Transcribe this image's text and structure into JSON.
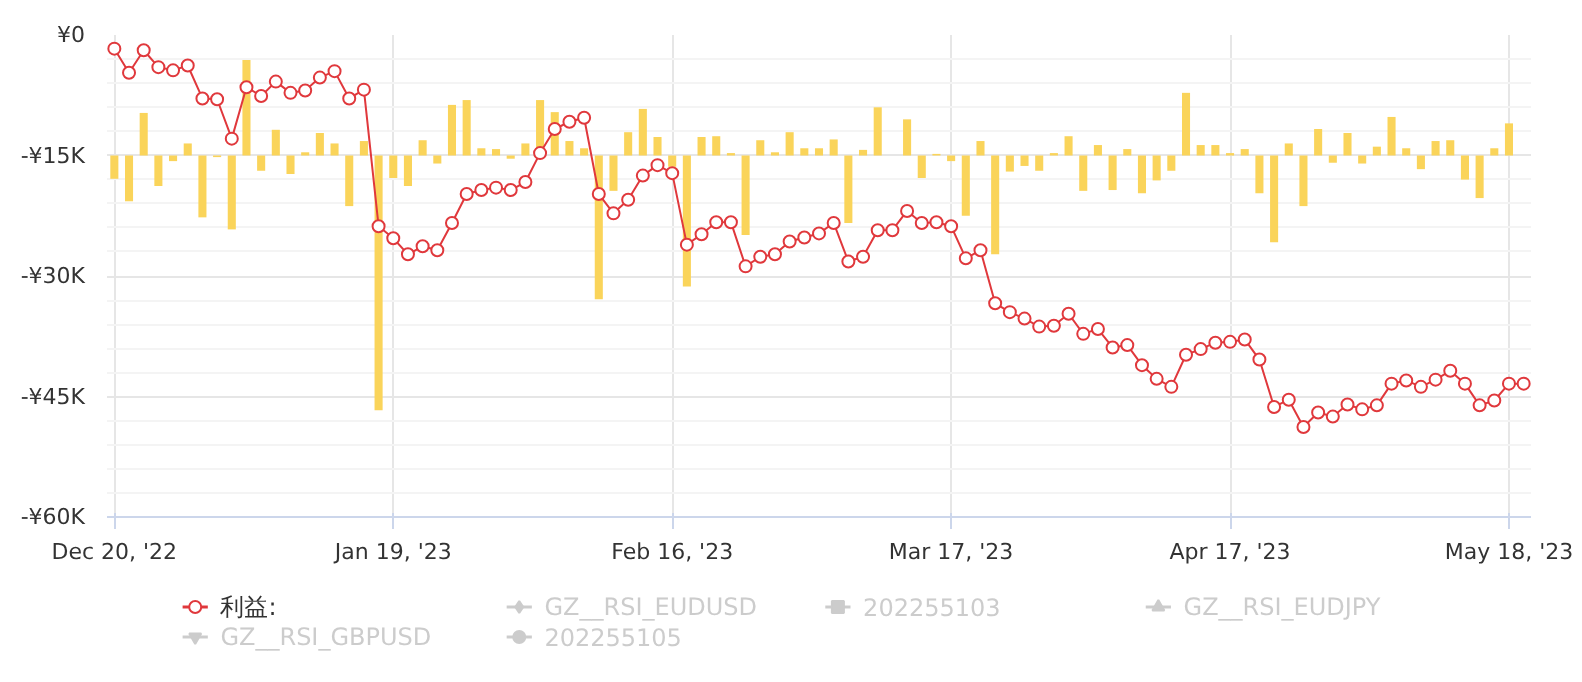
{
  "chart_data": {
    "type": "bar",
    "categories": [
      "Dec 20, '22",
      null,
      null,
      null,
      null,
      null,
      null,
      null,
      null,
      null,
      null,
      null,
      null,
      null,
      null,
      null,
      null,
      null,
      null,
      "Jan 19, '23",
      null,
      null,
      null,
      null,
      null,
      null,
      null,
      null,
      null,
      null,
      null,
      null,
      null,
      null,
      null,
      null,
      null,
      null,
      "Feb 16, '23",
      null,
      null,
      null,
      null,
      null,
      null,
      null,
      null,
      null,
      null,
      null,
      null,
      null,
      null,
      null,
      null,
      null,
      null,
      "Mar 17, '23",
      null,
      null,
      null,
      null,
      null,
      null,
      null,
      null,
      null,
      null,
      null,
      null,
      null,
      null,
      null,
      null,
      null,
      null,
      "Apr 17, '23",
      null,
      null,
      null,
      null,
      null,
      null,
      null,
      null,
      null,
      null,
      null,
      null,
      null,
      null,
      null,
      null,
      null,
      null,
      "May 18, '23",
      null
    ],
    "ylim": [
      -60000,
      0
    ],
    "yticks": [
      {
        "value": 0,
        "label": "¥0"
      },
      {
        "value": -15000,
        "label": "-¥15K"
      },
      {
        "value": -30000,
        "label": "-¥30K"
      },
      {
        "value": -45000,
        "label": "-¥45K"
      },
      {
        "value": -60000,
        "label": "-¥60K"
      }
    ],
    "grid": true,
    "legend": "bottom",
    "series": [
      {
        "color": "#fad45a",
        "base": [
          -15000,
          -15000,
          -15000,
          -15000,
          -15000,
          -15000,
          -15000,
          -15000,
          -15000,
          -15000,
          -15000,
          -15000,
          -15000,
          -15000,
          -15000,
          -15000,
          -15000,
          -15000,
          -15000,
          -15000,
          -15000,
          -15000,
          -15000,
          -15000,
          -15000,
          -15000,
          -15000,
          -15000,
          -15000,
          -15000,
          -15000,
          -15000,
          -15000,
          -15000,
          -15000,
          -15000,
          -15000,
          -15000,
          -15000,
          -15000,
          -15000,
          -15000,
          -15000,
          -15000,
          -15000,
          -15000,
          -15000,
          -15000,
          -15000,
          -15000,
          -15000,
          -15000,
          -15000,
          null,
          -15000,
          -15000,
          -15000,
          -15000,
          -15000,
          -15000,
          -15000,
          -15000,
          -15000,
          -15000,
          -15000,
          -15000,
          -15000,
          -15000,
          -15000,
          -15000,
          -15000,
          -15000,
          -15000,
          -15000,
          -15000,
          -15000,
          -15000,
          -15000,
          -15000,
          -15000,
          -15000,
          -15000,
          -15000,
          -15000,
          -15000,
          -15000,
          -15000,
          -15000,
          -15000,
          -15000,
          -15000,
          -15000,
          -15000,
          -15000,
          -15000,
          -15000,
          null
        ],
        "values": [
          -2900,
          -5700,
          5300,
          -3800,
          -700,
          1500,
          -7700,
          -200,
          -9200,
          11900,
          -1900,
          3200,
          -2300,
          400,
          2800,
          1500,
          -6300,
          1800,
          -31700,
          -2800,
          -3800,
          1900,
          -1000,
          6300,
          6900,
          900,
          800,
          -400,
          1500,
          6900,
          5400,
          1800,
          900,
          -17900,
          -4400,
          2900,
          5800,
          2300,
          -1400,
          -16300,
          2300,
          2400,
          300,
          -9900,
          1900,
          400,
          2900,
          900,
          900,
          2000,
          -8400,
          700,
          6000,
          null,
          4500,
          -2800,
          200,
          -700,
          -7500,
          1800,
          -12300,
          -2000,
          -1300,
          -1900,
          300,
          2400,
          -4400,
          1300,
          -4300,
          800,
          -4700,
          -3100,
          -1900,
          7800,
          1300,
          1300,
          300,
          800,
          -4700,
          -10800,
          1500,
          -6300,
          3300,
          -900,
          2800,
          -1000,
          1100,
          4800,
          900,
          -1700,
          1800,
          1900,
          -3000,
          -5300,
          900,
          4000,
          null
        ]
      },
      {
        "type": "line",
        "name": "利益:",
        "color": "#e0383c",
        "marker": "circle",
        "values": [
          -1700,
          -4700,
          -1900,
          -4000,
          -4400,
          -3800,
          -7900,
          -8000,
          -12900,
          -6500,
          -7600,
          -5800,
          -7200,
          -6900,
          -5300,
          -4500,
          -7900,
          -6800,
          -23800,
          -25300,
          -27300,
          -26300,
          -26800,
          -23400,
          -19800,
          -19300,
          -19000,
          -19300,
          -18300,
          -14700,
          -11700,
          -10800,
          -10300,
          -19800,
          -22200,
          -20500,
          -17500,
          -16200,
          -17200,
          -26100,
          -24800,
          -23300,
          -23300,
          -28800,
          -27600,
          -27300,
          -25700,
          -25200,
          -24700,
          -23400,
          -28200,
          -27600,
          -24300,
          -24300,
          -21900,
          -23400,
          -23300,
          -23800,
          -27800,
          -26800,
          -33400,
          -34500,
          -35300,
          -36300,
          -36200,
          -34700,
          -37200,
          -36600,
          -38900,
          -38600,
          -41100,
          -42800,
          -43800,
          -39800,
          -39100,
          -38300,
          -38200,
          -37900,
          -40400,
          -46300,
          -45400,
          -48800,
          -47000,
          -47500,
          -46000,
          -46600,
          -46100,
          -43400,
          -43000,
          -43800,
          -42900,
          -41800,
          -43400,
          -46100,
          -45500,
          -43400,
          -43400
        ]
      },
      {
        "type": "line",
        "name": "GZ__RSI_EUDUSD",
        "color": "#cccccc",
        "marker": "diamond",
        "values": [
          null,
          null,
          null,
          null,
          null,
          null,
          null,
          null,
          null,
          null,
          null,
          null,
          null,
          null,
          null,
          null,
          null,
          null,
          null,
          null,
          null,
          null,
          null,
          null,
          null,
          null,
          null,
          null,
          null,
          null,
          null,
          null,
          null,
          null,
          null,
          null,
          null,
          null,
          null,
          null,
          null,
          null,
          null,
          null,
          null,
          null,
          null,
          null,
          null,
          null,
          null,
          null,
          null,
          null,
          null,
          null,
          null,
          null,
          null,
          null,
          null,
          null,
          null,
          null,
          null,
          null,
          null,
          null,
          null,
          null,
          null,
          null,
          null,
          null,
          null,
          null,
          null,
          null,
          null,
          null,
          null,
          null,
          null,
          null,
          null,
          null,
          null,
          null,
          null,
          null,
          null,
          null,
          null,
          null,
          null,
          null,
          null
        ]
      },
      {
        "type": "line",
        "name": "202255103",
        "color": "#cccccc",
        "marker": "square",
        "values": [
          null,
          null,
          null,
          null,
          null,
          null,
          null,
          null,
          null,
          null,
          null,
          null,
          null,
          null,
          null,
          null,
          null,
          null,
          null,
          null,
          null,
          null,
          null,
          null,
          null,
          null,
          null,
          null,
          null,
          null,
          null,
          null,
          null,
          null,
          null,
          null,
          null,
          null,
          null,
          null,
          null,
          null,
          null,
          null,
          null,
          null,
          null,
          null,
          null,
          null,
          null,
          null,
          null,
          null,
          null,
          null,
          null,
          null,
          null,
          null,
          null,
          null,
          null,
          null,
          null,
          null,
          null,
          null,
          null,
          null,
          null,
          null,
          null,
          null,
          null,
          null,
          null,
          null,
          null,
          null,
          null,
          null,
          null,
          null,
          null,
          null,
          null,
          null,
          null,
          null,
          null,
          null,
          null,
          null,
          null,
          null,
          null
        ]
      },
      {
        "type": "line",
        "name": "GZ__RSI_EUDJPY",
        "color": "#cccccc",
        "marker": "triangle",
        "values": [
          null,
          null,
          null,
          null,
          null,
          null,
          null,
          null,
          null,
          null,
          null,
          null,
          null,
          null,
          null,
          null,
          null,
          null,
          null,
          null,
          null,
          null,
          null,
          null,
          null,
          null,
          null,
          null,
          null,
          null,
          null,
          null,
          null,
          null,
          null,
          null,
          null,
          null,
          null,
          null,
          null,
          null,
          null,
          null,
          null,
          null,
          null,
          null,
          null,
          null,
          null,
          null,
          null,
          null,
          null,
          null,
          null,
          null,
          null,
          null,
          null,
          null,
          null,
          null,
          null,
          null,
          null,
          null,
          null,
          null,
          null,
          null,
          null,
          null,
          null,
          null,
          null,
          null,
          null,
          null,
          null,
          null,
          null,
          null,
          null,
          null,
          null,
          null,
          null,
          null,
          null,
          null,
          null,
          null,
          null,
          null,
          null
        ]
      },
      {
        "type": "line",
        "name": "GZ__RSI_GBPUSD",
        "color": "#cccccc",
        "marker": "inverted_triangle",
        "values": [
          null,
          null,
          null,
          null,
          null,
          null,
          null,
          null,
          null,
          null,
          null,
          null,
          null,
          null,
          null,
          null,
          null,
          null,
          null,
          null,
          null,
          null,
          null,
          null,
          null,
          null,
          null,
          null,
          null,
          null,
          null,
          null,
          null,
          null,
          null,
          null,
          null,
          null,
          null,
          null,
          null,
          null,
          null,
          null,
          null,
          null,
          null,
          null,
          null,
          null,
          null,
          null,
          null,
          null,
          null,
          null,
          null,
          null,
          null,
          null,
          null,
          null,
          null,
          null,
          null,
          null,
          null,
          null,
          null,
          null,
          null,
          null,
          null,
          null,
          null,
          null,
          null,
          null,
          null,
          null,
          null,
          null,
          null,
          null,
          null,
          null,
          null,
          null,
          null,
          null,
          null,
          null,
          null,
          null,
          null,
          null,
          null
        ]
      },
      {
        "type": "line",
        "name": "202255105",
        "color": "#cccccc",
        "marker": "circle",
        "values": [
          null,
          null,
          null,
          null,
          null,
          null,
          null,
          null,
          null,
          null,
          null,
          null,
          null,
          null,
          null,
          null,
          null,
          null,
          null,
          null,
          null,
          null,
          null,
          null,
          null,
          null,
          null,
          null,
          null,
          null,
          null,
          null,
          null,
          null,
          null,
          null,
          null,
          null,
          null,
          null,
          null,
          null,
          null,
          null,
          null,
          null,
          null,
          null,
          null,
          null,
          null,
          null,
          null,
          null,
          null,
          null,
          null,
          null,
          null,
          null,
          null,
          null,
          null,
          null,
          null,
          null,
          null,
          null,
          null,
          null,
          null,
          null,
          null,
          null,
          null,
          null,
          null,
          null,
          null,
          null,
          null,
          null,
          null,
          null,
          null,
          null,
          null,
          null,
          null,
          null,
          null,
          null,
          null,
          null,
          null,
          null,
          null
        ]
      }
    ]
  }
}
